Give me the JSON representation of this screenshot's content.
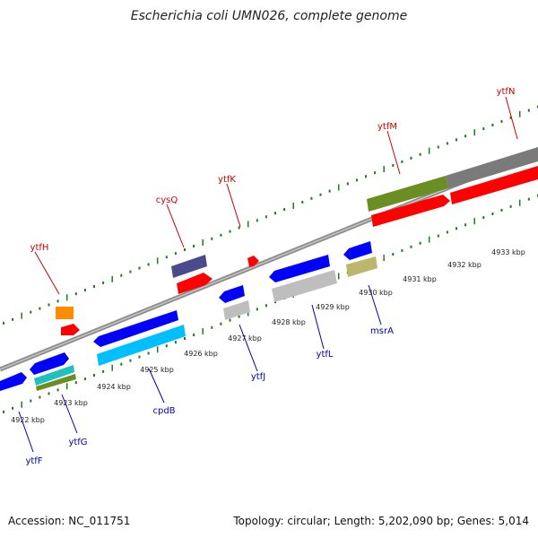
{
  "title": "Escherichia coli UMN026, complete genome",
  "footer": {
    "accession": "Accession: NC_011751",
    "stats": "Topology: circular; Length: 5,202,090 bp; Genes: 5,014"
  },
  "colors": {
    "backbone": "#8c8c8c",
    "tick": "#1f7a1f",
    "top_label": "#cc0000",
    "bottom_label": "#0000aa"
  },
  "kbp_labels": [
    "4922 kbp",
    "4923 kbp",
    "4924 kbp",
    "4925 kbp",
    "4926 kbp",
    "4927 kbp",
    "4928 kbp",
    "4929 kbp",
    "4930 kbp",
    "4931 kbp",
    "4932 kbp",
    "4933 kbp"
  ],
  "genes_top": [
    {
      "name": "ytfH"
    },
    {
      "name": "cysQ"
    },
    {
      "name": "ytfK"
    },
    {
      "name": "ytfM"
    },
    {
      "name": "ytfN"
    }
  ],
  "genes_bottom": [
    {
      "name": "ytfF"
    },
    {
      "name": "ytfG"
    },
    {
      "name": "cpdB"
    },
    {
      "name": "ytfJ"
    },
    {
      "name": "ytfL"
    },
    {
      "name": "msrA"
    }
  ]
}
